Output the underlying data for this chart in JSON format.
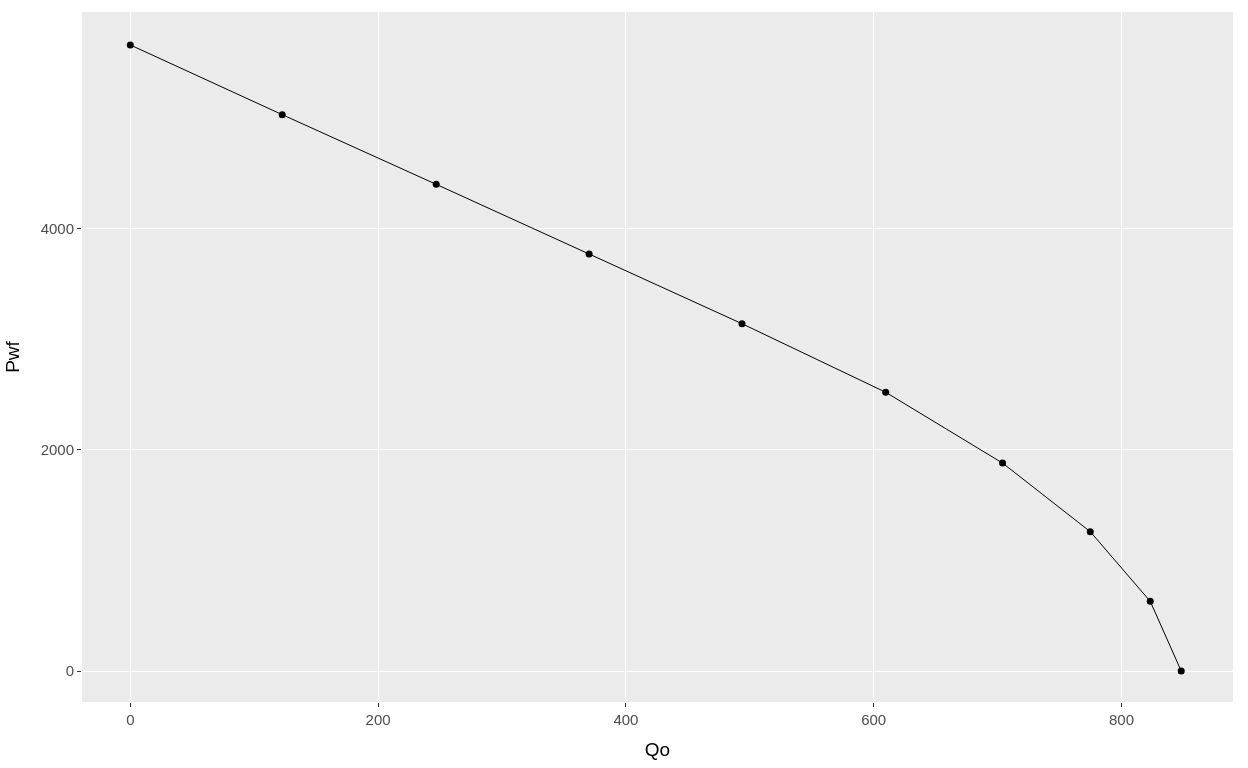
{
  "chart_data": {
    "type": "line",
    "xlabel": "Qo",
    "ylabel": "Pwf",
    "x": [
      0,
      122.6,
      246.9,
      370.3,
      493.7,
      609.7,
      704,
      774.8,
      823.2,
      848.2
    ],
    "series": [
      {
        "color": "#000000",
        "values": [
          5660,
          5030,
          4400,
          3770,
          3140,
          2520,
          1880,
          1260,
          630,
          0
        ]
      }
    ],
    "xlim": [
      -39,
      890
    ],
    "ylim": [
      -280,
      5958
    ],
    "xticks": [
      0,
      200,
      400,
      600,
      800
    ],
    "yticks": [
      0,
      2000,
      4000
    ],
    "grid": true,
    "marker": "circle",
    "line_style": "solid"
  }
}
